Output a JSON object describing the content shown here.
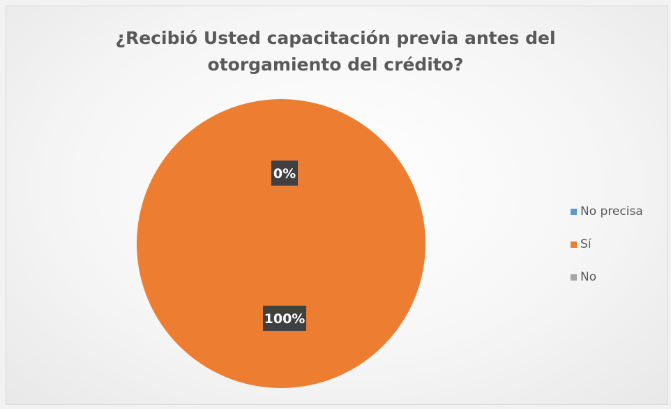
{
  "chart_data": {
    "type": "pie",
    "title_lines": [
      "¿Recibió Usted capacitación  previa antes del",
      "otorgamiento del crédito?"
    ],
    "categories": [
      "No precisa",
      "Sí",
      "No"
    ],
    "values": [
      0,
      100,
      0
    ],
    "data_labels": [
      "0%",
      "100%",
      "0%"
    ],
    "colors": [
      "#5b9bd5",
      "#ed7d31",
      "#a5a5a5"
    ],
    "legend_position": "right"
  }
}
